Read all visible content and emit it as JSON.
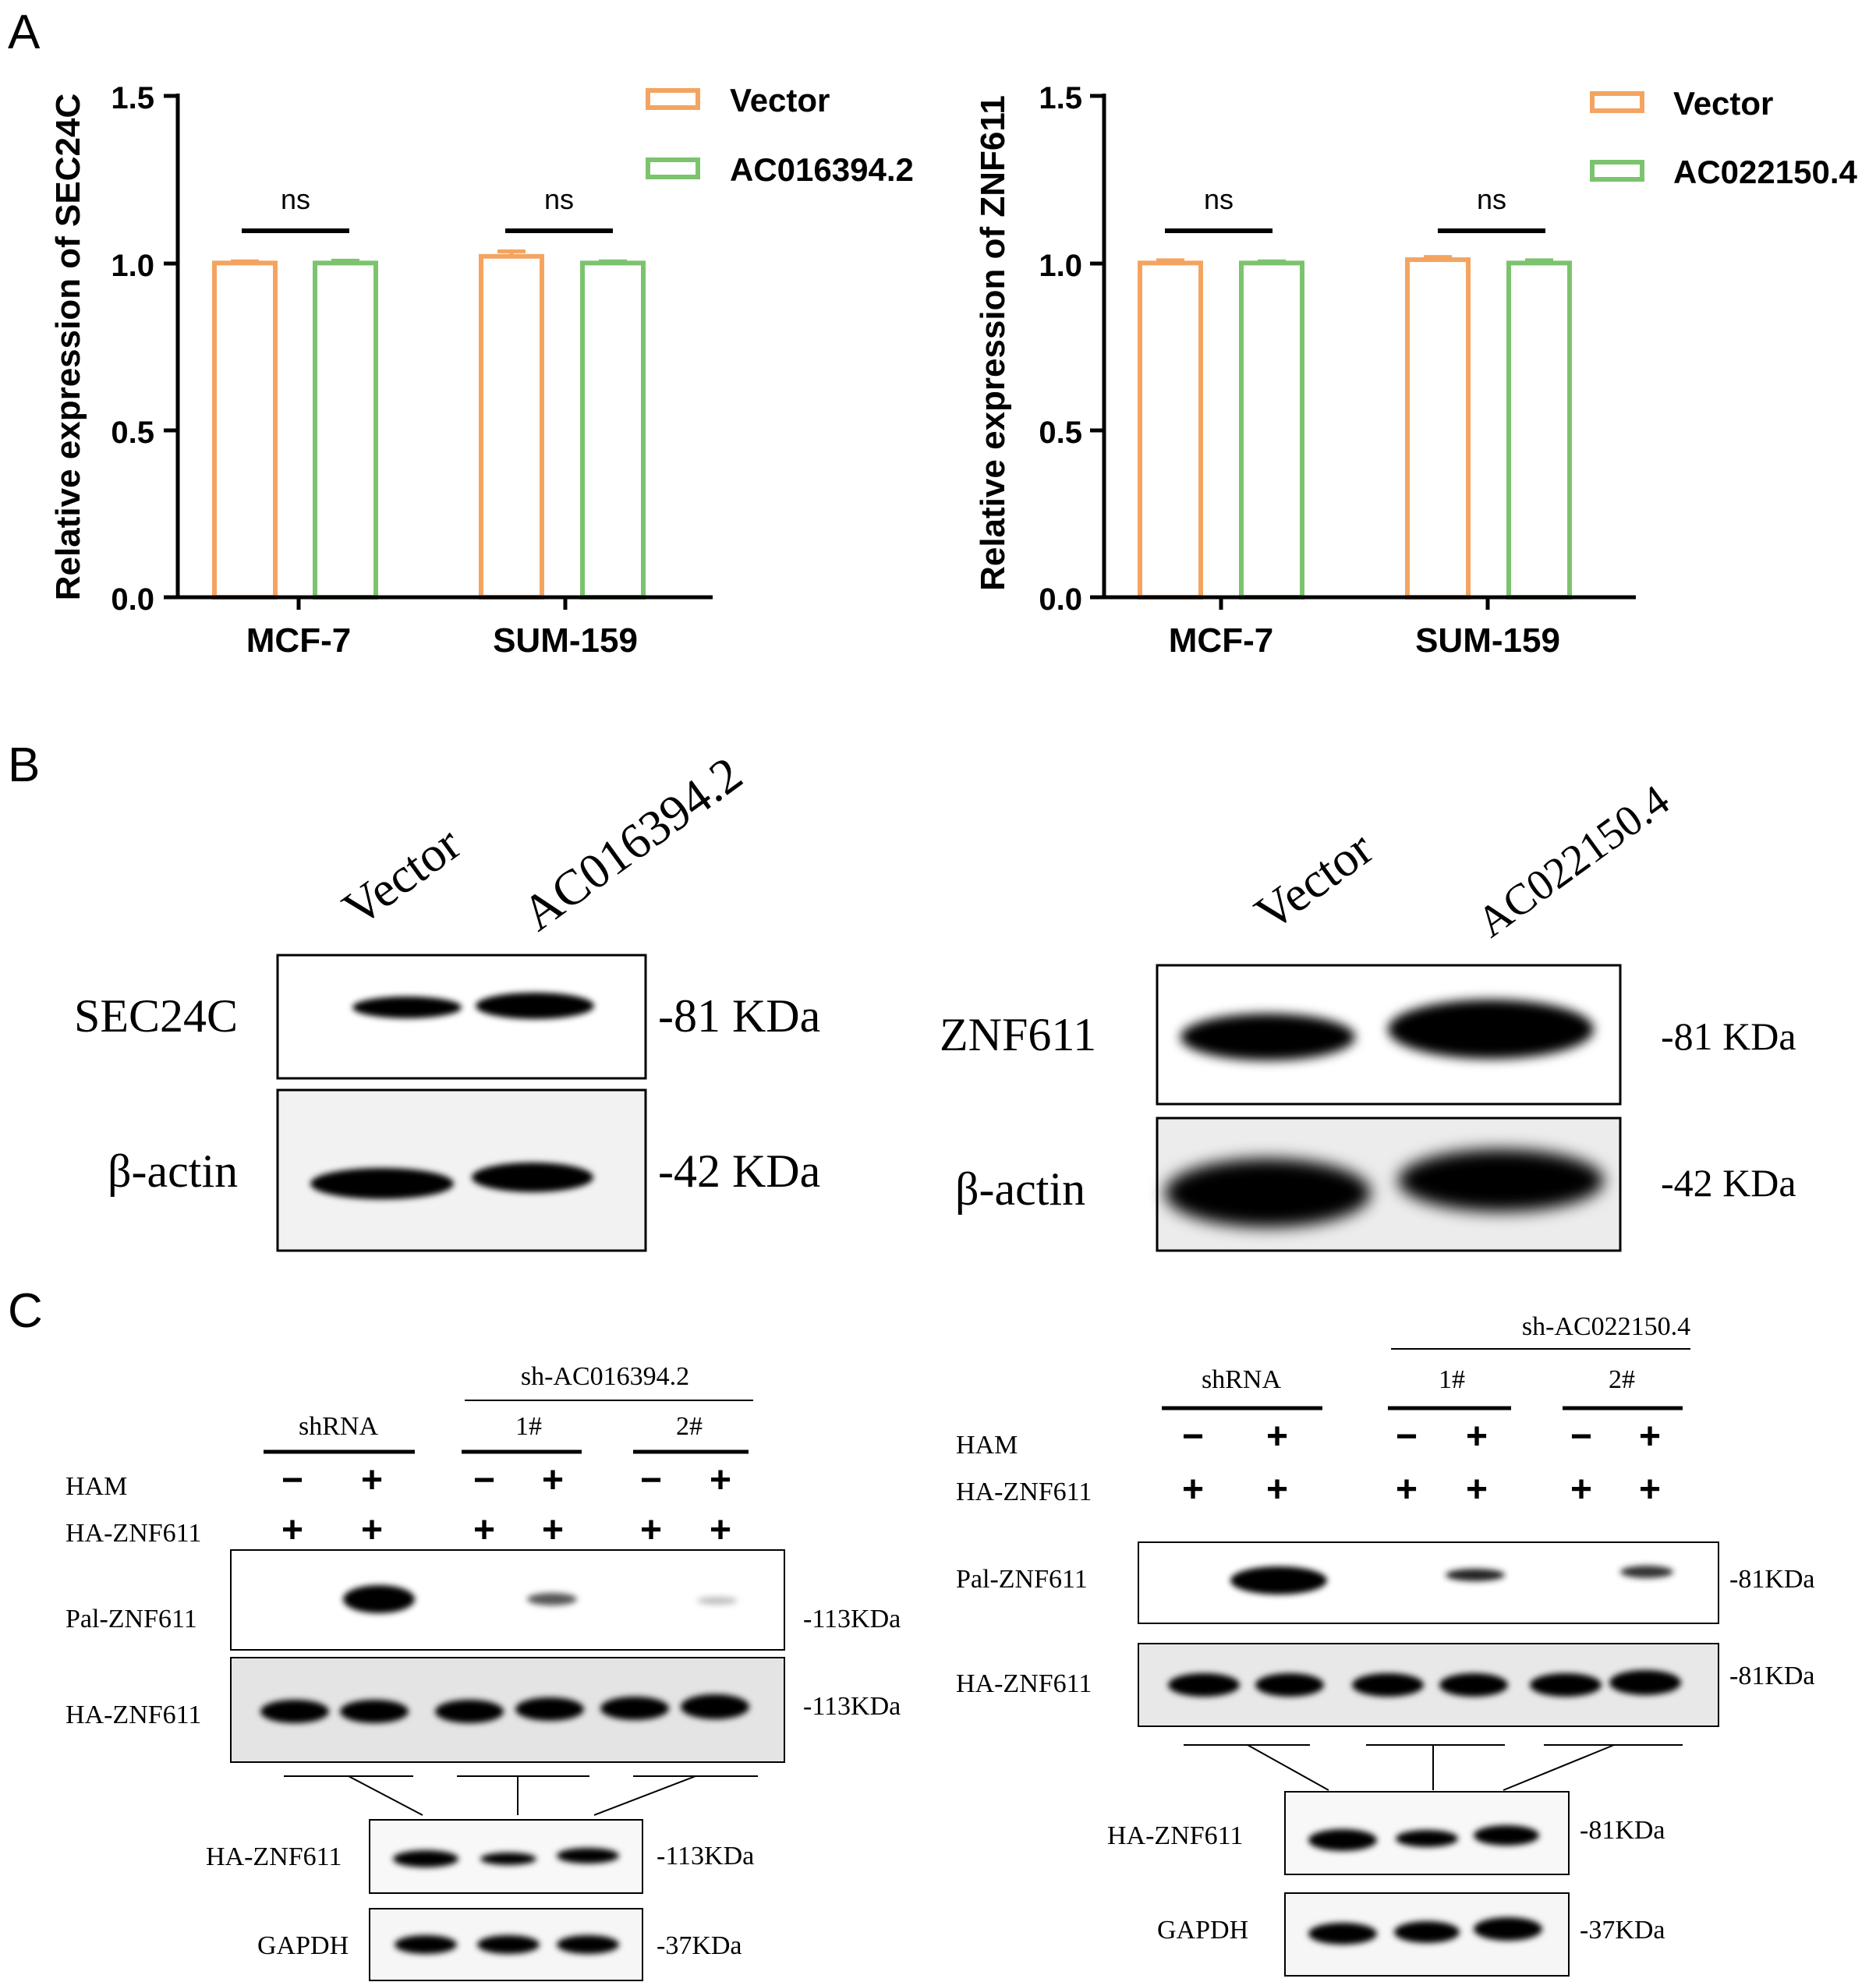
{
  "panel_labels": [
    "A",
    "B",
    "C"
  ],
  "chart_data": [
    {
      "type": "bar",
      "categories": [
        "MCF-7",
        "SUM-159"
      ],
      "series": [
        {
          "name": "Vector",
          "values": [
            1.0,
            1.02
          ],
          "errors": [
            0.005,
            0.015
          ],
          "color": "#F4A460"
        },
        {
          "name": "AC016394.2",
          "values": [
            1.0,
            1.0
          ],
          "errors": [
            0.007,
            0.005
          ],
          "color": "#7CC36E"
        }
      ],
      "title": "",
      "xlabel": "",
      "ylabel": "Relative expression of SEC24C",
      "ylim": [
        0,
        1.5
      ],
      "yticks": [
        "0.0",
        "0.5",
        "1.0",
        "1.5"
      ],
      "annotations": [
        "ns",
        "ns"
      ],
      "legend_position": "top-right",
      "grid": false
    },
    {
      "type": "bar",
      "categories": [
        "MCF-7",
        "SUM-159"
      ],
      "series": [
        {
          "name": "Vector",
          "values": [
            1.0,
            1.01
          ],
          "errors": [
            0.008,
            0.008
          ],
          "color": "#F4A460"
        },
        {
          "name": "AC022150.4",
          "values": [
            1.0,
            1.0
          ],
          "errors": [
            0.005,
            0.008
          ],
          "color": "#7CC36E"
        }
      ],
      "title": "",
      "xlabel": "",
      "ylabel": "Relative expression of ZNF611",
      "ylim": [
        0,
        1.5
      ],
      "yticks": [
        "0.0",
        "0.5",
        "1.0",
        "1.5"
      ],
      "annotations": [
        "ns",
        "ns"
      ],
      "legend_position": "top-right",
      "grid": false
    }
  ],
  "blot_b_left": {
    "lanes": [
      "Vector",
      "AC016394.2"
    ],
    "rows": [
      {
        "label": "SEC24C",
        "size": "-81 KDa"
      },
      {
        "label": "β-actin",
        "size": "-42 KDa"
      }
    ]
  },
  "blot_b_right": {
    "lanes": [
      "Vector",
      "AC022150.4"
    ],
    "rows": [
      {
        "label": "ZNF611",
        "size": "-81 KDa"
      },
      {
        "label": "β-actin",
        "size": "-42 KDa"
      }
    ]
  },
  "blot_c_left": {
    "group_header": "sh-AC016394.2",
    "groups": [
      "shRNA",
      "1#",
      "2#"
    ],
    "ham_label": "HAM",
    "ham_signs": [
      "−",
      "+",
      "−",
      "+",
      "−",
      "+"
    ],
    "ha_label": "HA-ZNF611",
    "ha_signs": [
      "+",
      "+",
      "+",
      "+",
      "+",
      "+"
    ],
    "rows": [
      {
        "label": "Pal-ZNF611",
        "size": "-113KDa"
      },
      {
        "label": "HA-ZNF611",
        "size": "-113KDa"
      }
    ],
    "lower_rows": [
      {
        "label": "HA-ZNF611",
        "size": "-113KDa"
      },
      {
        "label": "GAPDH",
        "size": "-37KDa"
      }
    ]
  },
  "blot_c_right": {
    "group_header": "sh-AC022150.4",
    "groups": [
      "shRNA",
      "1#",
      "2#"
    ],
    "ham_label": "HAM",
    "ham_signs": [
      "−",
      "+",
      "−",
      "+",
      "−",
      "+"
    ],
    "ha_label": "HA-ZNF611",
    "ha_signs": [
      "+",
      "+",
      "+",
      "+",
      "+",
      "+"
    ],
    "rows": [
      {
        "label": "Pal-ZNF611",
        "size": "-81KDa"
      },
      {
        "label": "HA-ZNF611",
        "size": "-81KDa"
      }
    ],
    "lower_rows": [
      {
        "label": "HA-ZNF611",
        "size": "-81KDa"
      },
      {
        "label": "GAPDH",
        "size": "-37KDa"
      }
    ]
  }
}
